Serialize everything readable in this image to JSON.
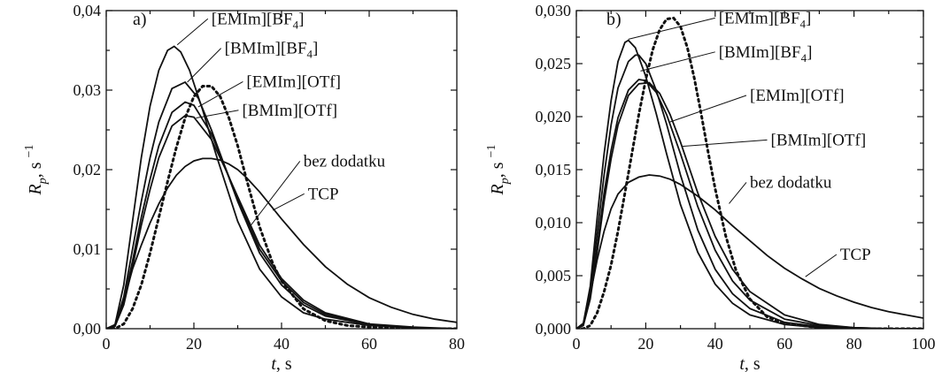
{
  "chart_data": [
    {
      "type": "line",
      "panel_label": "a)",
      "xlabel": "t, s",
      "ylabel": "Rp, s−1",
      "xlim": [
        0,
        80
      ],
      "ylim": [
        0,
        0.04
      ],
      "x_ticks": [
        0,
        20,
        40,
        60,
        80
      ],
      "x_tick_labels": [
        "0",
        "20",
        "40",
        "60",
        "80"
      ],
      "y_ticks": [
        0,
        0.01,
        0.02,
        0.03,
        0.04
      ],
      "y_tick_labels": [
        "0,00",
        "0,01",
        "0,02",
        "0,03",
        "0,04"
      ],
      "grid": false,
      "series": [
        {
          "name": "[EMIm][BF4]",
          "style": "solid",
          "x": [
            0,
            2,
            4,
            6,
            8,
            10,
            12,
            14,
            15.5,
            17,
            19,
            22,
            25,
            30,
            35,
            40,
            45,
            50,
            60,
            70,
            80
          ],
          "y": [
            0,
            0.0005,
            0.0055,
            0.0135,
            0.0215,
            0.028,
            0.0325,
            0.035,
            0.0355,
            0.0348,
            0.0325,
            0.0275,
            0.022,
            0.0135,
            0.0075,
            0.004,
            0.002,
            0.0012,
            0.0004,
            0.0001,
            0
          ]
        },
        {
          "name": "[BMIm][BF4]",
          "style": "solid",
          "x": [
            0,
            2,
            4,
            6,
            8,
            10,
            12,
            15,
            18,
            21,
            24,
            27,
            30,
            35,
            40,
            45,
            50,
            60,
            70,
            80
          ],
          "y": [
            0,
            0.0004,
            0.004,
            0.01,
            0.016,
            0.0215,
            0.026,
            0.0302,
            0.031,
            0.029,
            0.025,
            0.0205,
            0.016,
            0.0095,
            0.0055,
            0.003,
            0.0016,
            0.0005,
            0.0001,
            0
          ]
        },
        {
          "name": "[EMIm][OTf]",
          "style": "solid",
          "x": [
            0,
            2,
            4,
            6,
            8,
            10,
            12,
            15,
            18,
            20,
            24,
            27,
            30,
            35,
            40,
            45,
            50,
            60,
            70,
            80
          ],
          "y": [
            0,
            0.0003,
            0.0035,
            0.0085,
            0.014,
            0.0188,
            0.023,
            0.0272,
            0.0285,
            0.0281,
            0.0245,
            0.0205,
            0.0163,
            0.01,
            0.006,
            0.0033,
            0.0018,
            0.0005,
            0.0001,
            0
          ]
        },
        {
          "name": "[BMIm][OTf]",
          "style": "solid",
          "x": [
            0,
            2,
            4,
            6,
            8,
            10,
            12,
            15,
            18,
            20,
            24,
            27,
            30,
            35,
            40,
            45,
            50,
            60,
            70,
            80
          ],
          "y": [
            0,
            0.0003,
            0.003,
            0.0078,
            0.013,
            0.0175,
            0.0215,
            0.0255,
            0.0268,
            0.0266,
            0.0238,
            0.0203,
            0.0166,
            0.0105,
            0.0063,
            0.0036,
            0.002,
            0.0006,
            0.0002,
            0
          ]
        },
        {
          "name": "bez dodatku",
          "style": "dotted",
          "x": [
            0,
            2,
            4,
            6,
            8,
            10,
            12,
            14,
            16,
            18,
            20,
            22,
            24,
            26,
            28,
            30,
            32,
            35,
            38,
            40,
            45,
            50,
            55,
            60,
            70,
            80
          ],
          "y": [
            0,
            0,
            0.0006,
            0.0025,
            0.0055,
            0.0095,
            0.014,
            0.0185,
            0.0228,
            0.0265,
            0.0292,
            0.0305,
            0.0305,
            0.0292,
            0.0265,
            0.023,
            0.0188,
            0.0128,
            0.0082,
            0.006,
            0.0025,
            0.001,
            0.0004,
            0.0002,
            0,
            0
          ]
        },
        {
          "name": "TCP",
          "style": "solid",
          "x": [
            0,
            2,
            4,
            6,
            8,
            10,
            12,
            14,
            16,
            18,
            20,
            22,
            24,
            26,
            28,
            30,
            32,
            35,
            40,
            45,
            50,
            55,
            60,
            65,
            70,
            75,
            80
          ],
          "y": [
            0,
            0.0005,
            0.0035,
            0.0075,
            0.0105,
            0.0133,
            0.0157,
            0.0177,
            0.0193,
            0.0204,
            0.0211,
            0.0214,
            0.0214,
            0.0212,
            0.0207,
            0.02,
            0.019,
            0.0172,
            0.0138,
            0.0106,
            0.0078,
            0.0056,
            0.0039,
            0.0027,
            0.0018,
            0.0012,
            0.0008
          ]
        }
      ],
      "labels": [
        {
          "series": "[EMIm][BF4]",
          "base": "[EMIm][BF",
          "sub": "4",
          "end": "]",
          "lx": 24,
          "ly": 0.0383,
          "ax": 16.2,
          "ay": 0.0357
        },
        {
          "series": "[BMIm][BF4]",
          "base": "[BMIm][BF",
          "sub": "4",
          "end": "]",
          "lx": 27,
          "ly": 0.0346,
          "ax": 18.5,
          "ay": 0.031
        },
        {
          "series": "[EMIm][OTf]",
          "base": "[EMIm][OTf]",
          "lx": 32,
          "ly": 0.0304,
          "ax": 21,
          "ay": 0.0279
        },
        {
          "series": "[BMIm][OTf]",
          "base": "[BMIm][OTf]",
          "lx": 31,
          "ly": 0.0268,
          "ax": 20.5,
          "ay": 0.0265
        },
        {
          "series": "bez dodatku",
          "base": "bez dodatku",
          "lx": 45,
          "ly": 0.0204,
          "ax": 33,
          "ay": 0.013
        },
        {
          "series": "TCP",
          "base": "TCP",
          "lx": 46,
          "ly": 0.0163,
          "ax": 38,
          "ay": 0.0149
        }
      ]
    },
    {
      "type": "line",
      "panel_label": "b)",
      "xlabel": "t, s",
      "ylabel": "Rp, s−1",
      "xlim": [
        0,
        100
      ],
      "ylim": [
        0,
        0.03
      ],
      "x_ticks": [
        0,
        20,
        40,
        60,
        80,
        100
      ],
      "x_tick_labels": [
        "0",
        "20",
        "40",
        "60",
        "80",
        "100"
      ],
      "y_ticks": [
        0,
        0.005,
        0.01,
        0.015,
        0.02,
        0.025,
        0.03
      ],
      "y_tick_labels": [
        "0,000",
        "0,005",
        "0,010",
        "0,015",
        "0,020",
        "0,025",
        "0,030"
      ],
      "grid": false,
      "series": [
        {
          "name": "[EMIm][BF4]",
          "style": "solid",
          "x": [
            0,
            2,
            4,
            6,
            8,
            10,
            12,
            14,
            15,
            17,
            20,
            23,
            26,
            30,
            35,
            40,
            45,
            50,
            60,
            70,
            80,
            90,
            100
          ],
          "y": [
            0,
            0.0005,
            0.004,
            0.0105,
            0.0165,
            0.0215,
            0.0252,
            0.027,
            0.0272,
            0.0265,
            0.0238,
            0.0203,
            0.0165,
            0.0117,
            0.0072,
            0.0042,
            0.0024,
            0.0013,
            0.0004,
            0.0001,
            0,
            0,
            0
          ]
        },
        {
          "name": "[BMIm][BF4]",
          "style": "solid",
          "x": [
            0,
            2,
            4,
            6,
            8,
            10,
            12,
            15,
            17,
            18,
            20,
            23,
            26,
            30,
            35,
            40,
            45,
            50,
            60,
            70,
            80,
            90,
            100
          ],
          "y": [
            0,
            0.0004,
            0.0035,
            0.009,
            0.0145,
            0.0192,
            0.0227,
            0.0252,
            0.0258,
            0.0258,
            0.025,
            0.0225,
            0.0193,
            0.0145,
            0.0093,
            0.0056,
            0.0033,
            0.0019,
            0.0006,
            0.0002,
            0,
            0,
            0
          ]
        },
        {
          "name": "[EMIm][OTf]",
          "style": "solid",
          "x": [
            0,
            2,
            4,
            6,
            8,
            10,
            12,
            15,
            18,
            20,
            23,
            26,
            30,
            35,
            40,
            45,
            50,
            60,
            70,
            80,
            90,
            100
          ],
          "y": [
            0,
            0.0003,
            0.003,
            0.0078,
            0.0128,
            0.0168,
            0.0199,
            0.0225,
            0.0235,
            0.0234,
            0.0223,
            0.0202,
            0.0165,
            0.0115,
            0.0074,
            0.0045,
            0.0027,
            0.0009,
            0.0003,
            0.0001,
            0,
            0
          ]
        },
        {
          "name": "[BMIm][OTf]",
          "style": "solid",
          "x": [
            0,
            2,
            4,
            6,
            8,
            10,
            12,
            15,
            18,
            21,
            24,
            27,
            30,
            35,
            40,
            45,
            50,
            60,
            70,
            80,
            90,
            100
          ],
          "y": [
            0,
            0.0003,
            0.0028,
            0.0072,
            0.012,
            0.016,
            0.0192,
            0.022,
            0.0231,
            0.0232,
            0.0222,
            0.0202,
            0.0176,
            0.0128,
            0.0087,
            0.0056,
            0.0035,
            0.0013,
            0.0004,
            0.0001,
            0,
            0
          ]
        },
        {
          "name": "bez dodatku",
          "style": "dotted",
          "x": [
            0,
            2,
            4,
            6,
            8,
            10,
            12,
            14,
            16,
            18,
            20,
            22,
            24,
            26,
            28,
            30,
            32,
            34,
            36,
            38,
            40,
            43,
            46,
            50,
            55,
            60,
            70,
            80,
            90,
            100
          ],
          "y": [
            0,
            0,
            0.0003,
            0.0015,
            0.0035,
            0.006,
            0.0092,
            0.0128,
            0.0165,
            0.0202,
            0.0235,
            0.0263,
            0.0282,
            0.0292,
            0.0293,
            0.0285,
            0.0265,
            0.0236,
            0.0202,
            0.0166,
            0.0132,
            0.0088,
            0.0055,
            0.0028,
            0.0011,
            0.0005,
            0.0001,
            0,
            0,
            0
          ]
        },
        {
          "name": "TCP",
          "style": "solid",
          "x": [
            0,
            2,
            4,
            6,
            8,
            10,
            12,
            15,
            18,
            21,
            24,
            27,
            30,
            35,
            40,
            45,
            50,
            55,
            60,
            65,
            70,
            75,
            80,
            85,
            90,
            95,
            100
          ],
          "y": [
            0,
            0.0005,
            0.0032,
            0.0065,
            0.0092,
            0.0113,
            0.0127,
            0.0138,
            0.0143,
            0.0145,
            0.0144,
            0.0141,
            0.0136,
            0.0125,
            0.0112,
            0.0097,
            0.0083,
            0.0069,
            0.0057,
            0.0047,
            0.0038,
            0.0031,
            0.0025,
            0.002,
            0.0016,
            0.0013,
            0.001
          ]
        }
      ],
      "labels": [
        {
          "series": "[EMIm][BF4]",
          "base": "[EMIm][BF",
          "sub": "4",
          "end": "]",
          "lx": 41,
          "ly": 0.0288,
          "ax": 15,
          "ay": 0.0273
        },
        {
          "series": "[BMIm][BF4]",
          "base": "[BMIm][BF",
          "sub": "4",
          "end": "]",
          "lx": 41,
          "ly": 0.0256,
          "ax": 18.5,
          "ay": 0.0243
        },
        {
          "series": "[EMIm][OTf]",
          "base": "[EMIm][OTf]",
          "lx": 50,
          "ly": 0.0215,
          "ax": 27,
          "ay": 0.0195
        },
        {
          "series": "[BMIm][OTf]",
          "base": "[BMIm][OTf]",
          "lx": 56,
          "ly": 0.0173,
          "ax": 30.5,
          "ay": 0.0172
        },
        {
          "series": "bez dodatku",
          "base": "bez dodatku",
          "lx": 50,
          "ly": 0.0133,
          "ax": 44,
          "ay": 0.0118
        },
        {
          "series": "TCP",
          "base": "TCP",
          "lx": 76,
          "ly": 0.0065,
          "ax": 66,
          "ay": 0.0049
        }
      ]
    }
  ]
}
